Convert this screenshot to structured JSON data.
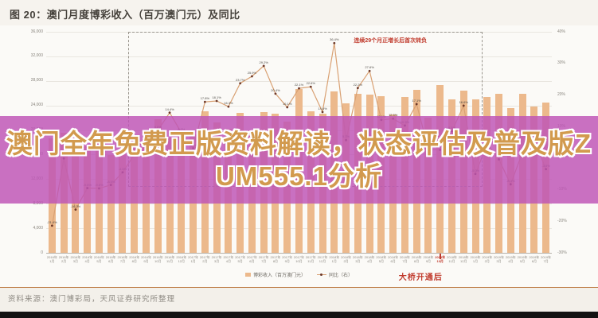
{
  "header": {
    "title": "图 20：澳门月度博彩收入（百万澳门元）及同比"
  },
  "overlay": {
    "text": "澳门全年免费正版资料解读，状态评估及普及版ZUM555.1分析",
    "bg_color": "#be54b6",
    "text_color": "#d29a4e",
    "outline_color": "#ffffff"
  },
  "annotations": {
    "growth_box_note": "连续29个月正增长后首次转负",
    "bridge_note": "大桥开通后",
    "accent_color": "#c0392b"
  },
  "legend": {
    "bar_label": "博彩收入（百万澳门元）",
    "line_label": "同比（右）"
  },
  "footer": {
    "source": "资料来源：澳门博彩局，天风证券研究所整理"
  },
  "colors": {
    "bar": "#ecb98c",
    "line": "#d9a173",
    "marker": "#6e3a2a",
    "gridline": "#e9e6e0"
  },
  "chart_data": {
    "type": "bar",
    "title": "澳门月度博彩收入（百万澳门元）及同比",
    "xlabel": "",
    "ylabel_left": "百万澳门元",
    "ylabel_right": "同比",
    "grid": true,
    "legend_position": "bottom",
    "categories_year": [
      "2016年",
      "2016年",
      "2016年",
      "2016年",
      "2016年",
      "2016年",
      "2016年",
      "2016年",
      "2016年",
      "2016年",
      "2016年",
      "2016年",
      "2017年",
      "2017年",
      "2017年",
      "2017年",
      "2017年",
      "2017年",
      "2017年",
      "2017年",
      "2017年",
      "2017年",
      "2017年",
      "2017年",
      "2018年",
      "2018年",
      "2018年",
      "2018年",
      "2018年",
      "2018年",
      "2018年",
      "2018年",
      "2018年",
      "2018年",
      "2018年",
      "2018年",
      "2019年",
      "2019年",
      "2019年",
      "2019年",
      "2019年",
      "2019年",
      "2019年"
    ],
    "categories_month": [
      "1月",
      "2月",
      "3月",
      "4月",
      "5月",
      "6月",
      "7月",
      "8月",
      "9月",
      "10月",
      "11月",
      "12月",
      "1月",
      "2月",
      "3月",
      "4月",
      "5月",
      "6月",
      "7月",
      "8月",
      "9月",
      "10月",
      "11月",
      "12月",
      "1月",
      "2月",
      "3月",
      "4月",
      "5月",
      "6月",
      "7月",
      "8月",
      "9月",
      "10月",
      "11月",
      "12月",
      "1月",
      "2月",
      "3月",
      "4月",
      "5月",
      "6月",
      "7月"
    ],
    "series": [
      {
        "name": "博彩收入（百万澳门元）",
        "type": "bar",
        "axis": "left",
        "values": [
          18674,
          19521,
          17980,
          17340,
          18389,
          15885,
          17773,
          18837,
          18401,
          21807,
          18826,
          19743,
          19255,
          22990,
          21233,
          20164,
          22744,
          19992,
          22964,
          22676,
          21387,
          26630,
          23038,
          22641,
          26265,
          24312,
          25952,
          25726,
          25488,
          22490,
          25327,
          26558,
          21952,
          27328,
          24995,
          26468,
          24942,
          25370,
          25840,
          23588,
          25952,
          23812,
          24453
        ]
      },
      {
        "name": "同比（右）",
        "type": "line",
        "axis": "right",
        "values": [
          -21.4,
          -0.1,
          -16.3,
          -9.5,
          -9.6,
          -8.5,
          -4.5,
          1.1,
          7.4,
          8.8,
          14.4,
          8.0,
          3.1,
          17.8,
          18.1,
          16.3,
          23.7,
          25.9,
          29.2,
          20.4,
          16.1,
          22.1,
          22.6,
          14.6,
          36.4,
          5.7,
          22.2,
          27.6,
          12.1,
          12.5,
          10.3,
          17.1,
          2.8,
          2.6,
          8.5,
          16.6,
          -5.0,
          4.4,
          -0.4,
          -8.3,
          1.8,
          5.9,
          -3.5
        ]
      }
    ],
    "left_axis": {
      "min": 0,
      "max": 36000,
      "step": 4000,
      "labels": [
        "36,000",
        "32,000",
        "28,000",
        "24,000",
        "20,000",
        "16,000",
        "12,000",
        "8,000",
        "4,000",
        "0"
      ]
    },
    "right_axis": {
      "min": -30,
      "max": 40,
      "step": 10,
      "labels": [
        "40%",
        "30%",
        "20%",
        "10%",
        "0%",
        "-10%",
        "-20%",
        "-30%"
      ]
    },
    "highlight_index": 33,
    "highlight_label": "2018年10月",
    "growth_box": {
      "start_index": 7,
      "end_index": 37,
      "bottom_value_pct": -8.6
    }
  }
}
